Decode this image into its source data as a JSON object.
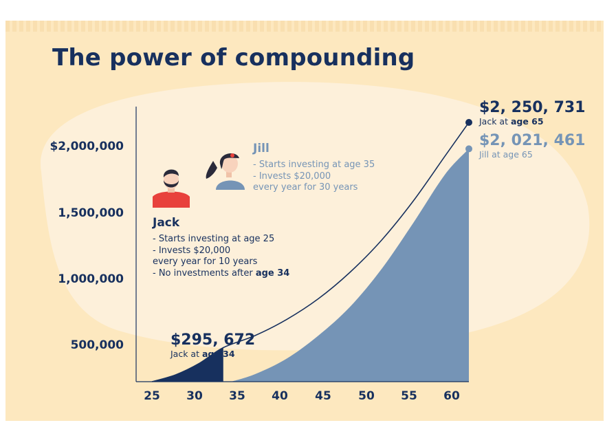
{
  "title": "The power of compounding",
  "chart_data": {
    "type": "area",
    "title": "The power of compounding",
    "x_ticks": [
      "25",
      "30",
      "35",
      "40",
      "45",
      "50",
      "55",
      "60"
    ],
    "y_ticks": [
      "$2,000,000",
      "1,500,000",
      "1,000,000",
      "500,000"
    ],
    "xlim": [
      23,
      65
    ],
    "ylim": [
      0,
      2250731
    ],
    "series": [
      {
        "name": "Jack",
        "color": "#17305e",
        "points": [
          [
            25,
            0
          ],
          [
            28,
            60000
          ],
          [
            31,
            160000
          ],
          [
            34,
            295672
          ],
          [
            38,
            400000
          ],
          [
            42,
            540000
          ],
          [
            46,
            720000
          ],
          [
            50,
            950000
          ],
          [
            54,
            1230000
          ],
          [
            58,
            1570000
          ],
          [
            62,
            1960000
          ],
          [
            65,
            2250731
          ]
        ]
      },
      {
        "name": "Jill",
        "color": "#7594b6",
        "points": [
          [
            35,
            0
          ],
          [
            38,
            65000
          ],
          [
            42,
            200000
          ],
          [
            46,
            400000
          ],
          [
            50,
            650000
          ],
          [
            54,
            980000
          ],
          [
            58,
            1380000
          ],
          [
            62,
            1800000
          ],
          [
            65,
            2021461
          ]
        ]
      }
    ],
    "annotations": [
      {
        "value": "$2, 250, 731",
        "label": "Jack at ",
        "label_bold": "age 65"
      },
      {
        "value": "$2, 021, 461",
        "label": "Jill at age 65"
      },
      {
        "value": "$295, 672",
        "label": "Jack at ",
        "label_bold": "age 34"
      }
    ]
  },
  "jill": {
    "name": "Jill",
    "lines": [
      "- Starts investing at age 35",
      "- Invests $20,000",
      "every year for 30 years"
    ]
  },
  "jack": {
    "name": "Jack",
    "lines": [
      "- Starts investing at age 25",
      "- Invests $20,000",
      "every year for 10 years"
    ],
    "last_prefix": "- No investments after ",
    "last_bold": "age 34"
  },
  "colors": {
    "navy": "#17305e",
    "blue": "#7594b6",
    "bg": "#fde8bf",
    "blob": "#fdf0da",
    "shirt": "#e8413c"
  },
  "icons": [
    "jack-avatar-icon",
    "jill-avatar-icon"
  ]
}
